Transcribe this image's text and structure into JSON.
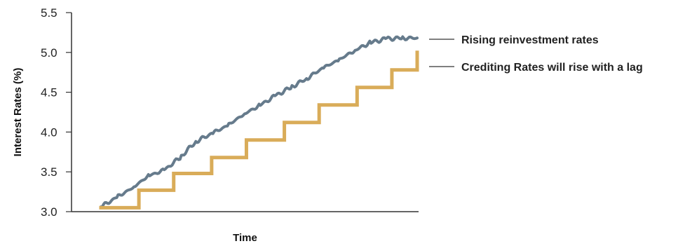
{
  "chart_data": {
    "type": "line",
    "title": "",
    "xlabel": "Time",
    "ylabel": "Interest Rates (%)",
    "ylim": [
      3.0,
      5.5
    ],
    "yticks": [
      "3.0",
      "3.5",
      "4.0",
      "4.5",
      "5.0",
      "5.5"
    ],
    "grid": false,
    "legend_placement": "right",
    "colors": {
      "axis": "#333333",
      "leader": "#555555"
    },
    "series": [
      {
        "name": "Rising reinvestment rates",
        "style": "smooth",
        "color": "#667b8c",
        "x": [
          0,
          0.05,
          0.1,
          0.15,
          0.2,
          0.25,
          0.3,
          0.35,
          0.4,
          0.45,
          0.5,
          0.55,
          0.6,
          0.65,
          0.7,
          0.75,
          0.8,
          0.85,
          0.9,
          0.95,
          1.0
        ],
        "y": [
          3.06,
          3.18,
          3.3,
          3.45,
          3.52,
          3.68,
          3.88,
          3.98,
          4.08,
          4.22,
          4.33,
          4.45,
          4.56,
          4.67,
          4.8,
          4.9,
          5.02,
          5.12,
          5.17,
          5.18,
          5.18
        ]
      },
      {
        "name": "Crediting Rates will rise with a lag",
        "style": "step",
        "color": "#d9ac59",
        "x": [
          0,
          0.12,
          0.23,
          0.35,
          0.46,
          0.58,
          0.69,
          0.81,
          0.92,
          1.0
        ],
        "y": [
          3.05,
          3.27,
          3.48,
          3.68,
          3.9,
          4.12,
          4.34,
          4.56,
          4.78,
          5.0
        ]
      }
    ]
  }
}
